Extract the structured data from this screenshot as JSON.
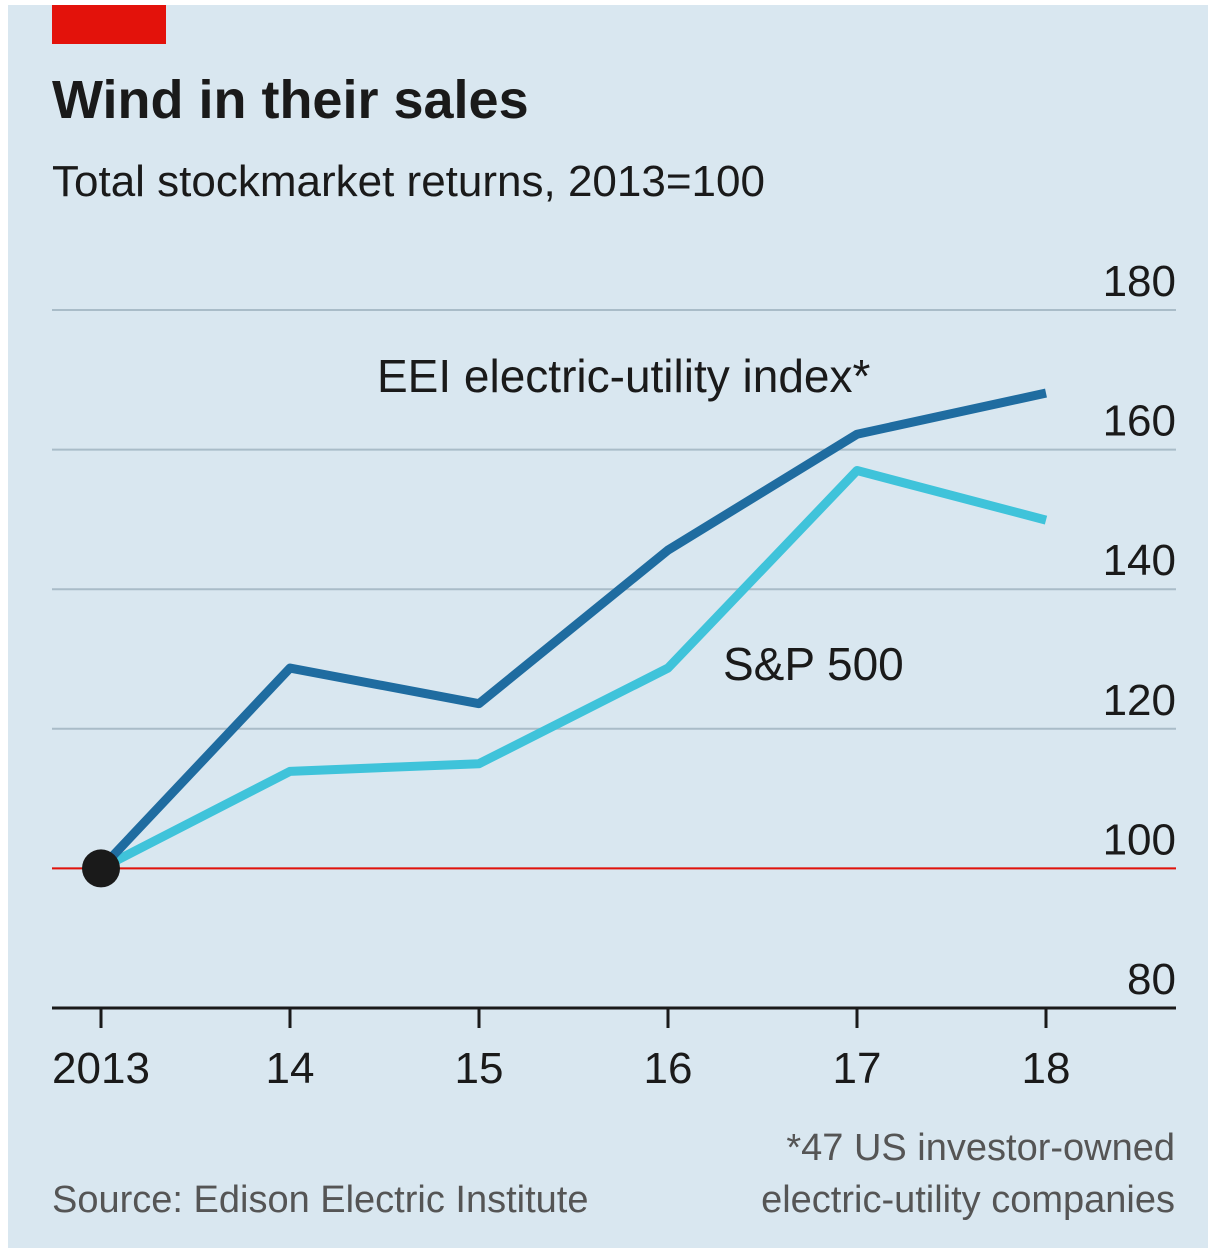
{
  "chart_data": {
    "type": "line",
    "title": "Wind in their sales",
    "subtitle": "Total stockmarket returns, 2013=100",
    "categories": [
      "2013",
      "14",
      "15",
      "16",
      "17",
      "18"
    ],
    "series": [
      {
        "name": "EEI electric-utility index*",
        "color": "#1f6ca0",
        "values": [
          100,
          128.7,
          123.6,
          145.6,
          162.2,
          168.1
        ]
      },
      {
        "name": "S&P 500",
        "color": "#3fc3da",
        "values": [
          100,
          113.9,
          115,
          128.7,
          157,
          149.9
        ]
      }
    ],
    "ylim": [
      80,
      180
    ],
    "yticks": [
      80,
      100,
      120,
      140,
      160,
      180
    ],
    "grid": true,
    "reference_line": 100,
    "reference_color": "#e3120b",
    "source": "Source: Edison Electric Institute",
    "footnote": [
      "*47 US investor-owned",
      "electric-utility companies"
    ]
  }
}
